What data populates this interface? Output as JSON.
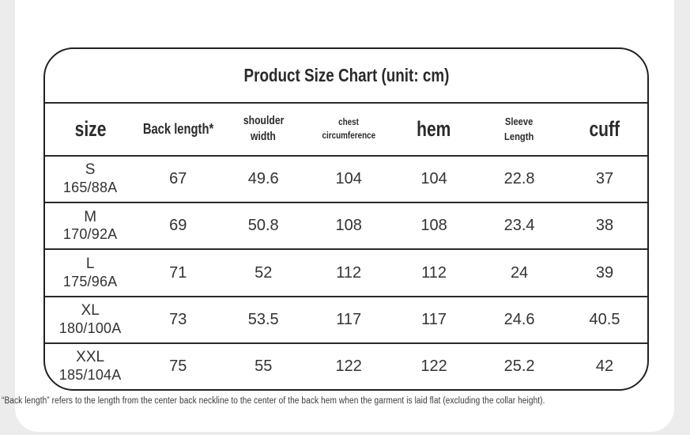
{
  "title": "Product Size Chart (unit: cm)",
  "unit": "cm",
  "header": {
    "size": "size",
    "back_length": "Back length*",
    "shoulder_line1": "shoulder",
    "shoulder_line2": "width",
    "chest_line1": "chest",
    "chest_line2": "circumference",
    "hem": "hem",
    "sleeve_line1": "Sleeve",
    "sleeve_line2": "Length",
    "cuff": "cuff"
  },
  "table": {
    "rows": [
      {
        "size": "S",
        "code": "165/88A",
        "values": [
          "67",
          "49.6",
          "104",
          "104",
          "22.8",
          "37"
        ]
      },
      {
        "size": "M",
        "code": "170/92A",
        "values": [
          "69",
          "50.8",
          "108",
          "108",
          "23.4",
          "38"
        ]
      },
      {
        "size": "L",
        "code": "175/96A",
        "values": [
          "71",
          "52",
          "112",
          "112",
          "24",
          "39"
        ]
      },
      {
        "size": "XL",
        "code": "180/100A",
        "values": [
          "73",
          "53.5",
          "117",
          "117",
          "24.6",
          "40.5"
        ]
      },
      {
        "size": "XXL",
        "code": "185/104A",
        "values": [
          "75",
          "55",
          "122",
          "122",
          "25.2",
          "42"
        ]
      }
    ]
  },
  "footnote": "“Back length” refers to the length from the center back neckline to the center of the back hem when the garment is laid flat (excluding the collar height).",
  "colors": {
    "background": "#ececec",
    "card": "#ffffff",
    "border": "#222222",
    "text": "#333333"
  },
  "chart_data": {
    "type": "table",
    "title": "Product Size Chart (unit: cm)",
    "unit": "cm",
    "columns": [
      "size",
      "Back length*",
      "shoulder width",
      "chest circumference",
      "hem",
      "Sleeve Length",
      "cuff"
    ],
    "rows": [
      [
        "S 165/88A",
        67,
        49.6,
        104,
        104,
        22.8,
        37
      ],
      [
        "M 170/92A",
        69,
        50.8,
        108,
        108,
        23.4,
        38
      ],
      [
        "L 175/96A",
        71,
        52,
        112,
        112,
        24,
        39
      ],
      [
        "XL 180/100A",
        73,
        53.5,
        117,
        117,
        24.6,
        40.5
      ],
      [
        "XXL 185/104A",
        75,
        55,
        122,
        122,
        25.2,
        42
      ]
    ],
    "footnote": "“Back length” refers to the length from the center back neckline to the center of the back hem when the garment is laid flat (excluding the collar height)."
  }
}
